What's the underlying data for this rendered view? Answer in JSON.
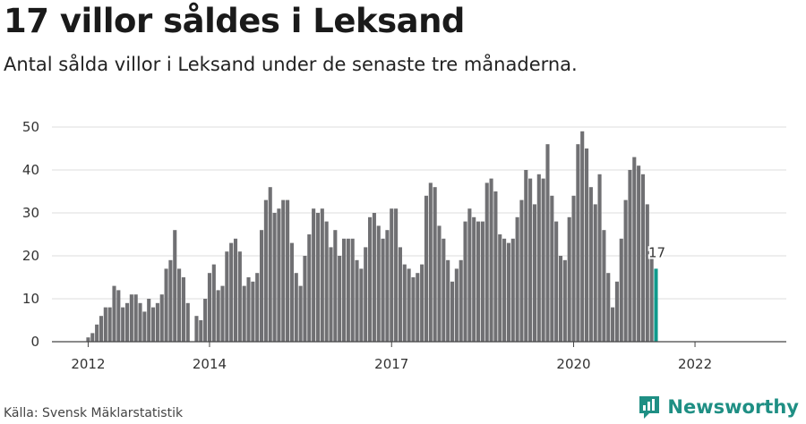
{
  "header": {
    "title": "17 villor såldes i Leksand",
    "subtitle": "Antal sålda villor i Leksand under de senaste tre månaderna."
  },
  "footer": {
    "source": "Källa: Svensk Mäklarstatistik",
    "brand": "Newsworthy"
  },
  "colors": {
    "bar": "#707073",
    "highlight": "#0f9a8c",
    "grid": "#dddddd",
    "axis": "#444444",
    "brand": "#1f8f84"
  },
  "chart_data": {
    "type": "bar",
    "x_ticks": [
      "2012",
      "2014",
      "2017",
      "2020",
      "2022"
    ],
    "ylim": [
      0,
      50
    ],
    "y_ticks": [
      0,
      10,
      20,
      30,
      40,
      50
    ],
    "values": [
      1,
      2,
      4,
      6,
      8,
      8,
      13,
      12,
      8,
      9,
      11,
      11,
      9,
      7,
      10,
      8,
      9,
      11,
      17,
      19,
      26,
      17,
      15,
      9,
      0,
      6,
      5,
      10,
      16,
      18,
      12,
      13,
      21,
      23,
      24,
      21,
      13,
      15,
      14,
      16,
      26,
      33,
      36,
      30,
      31,
      33,
      33,
      23,
      16,
      13,
      20,
      25,
      31,
      30,
      31,
      28,
      22,
      26,
      20,
      24,
      24,
      24,
      19,
      17,
      22,
      29,
      30,
      27,
      24,
      26,
      31,
      31,
      22,
      18,
      17,
      15,
      16,
      18,
      34,
      37,
      36,
      27,
      24,
      19,
      14,
      17,
      19,
      28,
      31,
      29,
      28,
      28,
      37,
      38,
      35,
      25,
      24,
      23,
      24,
      29,
      33,
      40,
      38,
      32,
      39,
      38,
      46,
      34,
      28,
      20,
      19,
      29,
      34,
      46,
      49,
      45,
      36,
      32,
      39,
      26,
      16,
      8,
      14,
      24,
      33,
      40,
      43,
      41,
      39,
      32,
      20,
      17
    ],
    "highlight_label": "17",
    "grid": true,
    "legend": "none"
  }
}
